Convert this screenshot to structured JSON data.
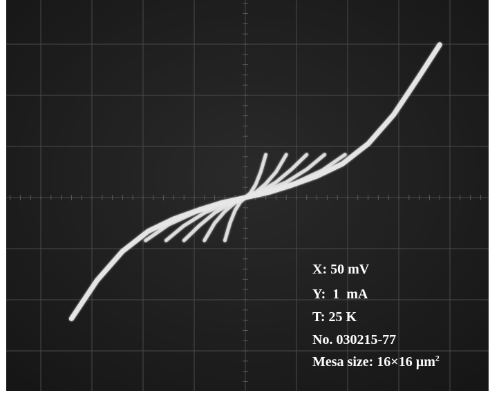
{
  "chart_data": {
    "type": "line",
    "title": "",
    "xlabel": "",
    "ylabel": "",
    "grid": true,
    "grid_divisions": {
      "x": 10,
      "y": 8
    },
    "xlim": [
      -5,
      5
    ],
    "ylim": [
      -4,
      4
    ],
    "units": {
      "x_per_div": "50 mV",
      "y_per_div": "1 mA"
    },
    "series": [
      {
        "points": [
          [
            -3.4,
            -2.37
          ],
          [
            -2.9,
            -1.62
          ],
          [
            -2.4,
            -1.05
          ],
          [
            -1.9,
            -0.66
          ],
          [
            -1.4,
            -0.42
          ],
          [
            -0.9,
            -0.24
          ],
          [
            -0.45,
            -0.1
          ],
          [
            0,
            0
          ],
          [
            0.45,
            0.1
          ],
          [
            0.9,
            0.24
          ],
          [
            1.4,
            0.42
          ],
          [
            1.9,
            0.66
          ],
          [
            2.4,
            1.05
          ],
          [
            2.9,
            1.62
          ],
          [
            3.4,
            2.37
          ],
          [
            3.8,
            2.99
          ]
        ]
      },
      {
        "points": [
          [
            -1.95,
            -0.84
          ],
          [
            -1.5,
            -0.53
          ],
          [
            -1.0,
            -0.3
          ],
          [
            -0.5,
            -0.12
          ],
          [
            0,
            0
          ],
          [
            0.5,
            0.12
          ],
          [
            1.0,
            0.3
          ],
          [
            1.5,
            0.53
          ],
          [
            1.95,
            0.84
          ]
        ]
      },
      {
        "points": [
          [
            -1.55,
            -0.84
          ],
          [
            -1.2,
            -0.55
          ],
          [
            -0.8,
            -0.3
          ],
          [
            -0.4,
            -0.13
          ],
          [
            0,
            0
          ],
          [
            0.4,
            0.13
          ],
          [
            0.8,
            0.3
          ],
          [
            1.2,
            0.55
          ],
          [
            1.55,
            0.84
          ]
        ]
      },
      {
        "points": [
          [
            -1.2,
            -0.84
          ],
          [
            -0.9,
            -0.55
          ],
          [
            -0.6,
            -0.3
          ],
          [
            -0.3,
            -0.12
          ],
          [
            0,
            0
          ],
          [
            0.3,
            0.12
          ],
          [
            0.6,
            0.3
          ],
          [
            0.9,
            0.55
          ],
          [
            1.2,
            0.84
          ]
        ]
      },
      {
        "points": [
          [
            -0.8,
            -0.84
          ],
          [
            -0.6,
            -0.5
          ],
          [
            -0.4,
            -0.27
          ],
          [
            -0.2,
            -0.1
          ],
          [
            0,
            0
          ],
          [
            0.2,
            0.1
          ],
          [
            0.4,
            0.27
          ],
          [
            0.6,
            0.5
          ],
          [
            0.8,
            0.84
          ]
        ]
      },
      {
        "points": [
          [
            -0.4,
            -0.84
          ],
          [
            -0.3,
            -0.5
          ],
          [
            -0.2,
            -0.25
          ],
          [
            -0.1,
            -0.09
          ],
          [
            0,
            0
          ],
          [
            0.1,
            0.09
          ],
          [
            0.2,
            0.25
          ],
          [
            0.3,
            0.5
          ],
          [
            0.4,
            0.84
          ]
        ]
      }
    ]
  },
  "annotations": {
    "x_scale": "X: 50 mV",
    "y_scale": "Y:  1  mA",
    "temperature": "T: 25 K",
    "sample_no": "No. 030215-77",
    "mesa_prefix": "Mesa size: 16×16 µm",
    "mesa_sup": "2"
  }
}
